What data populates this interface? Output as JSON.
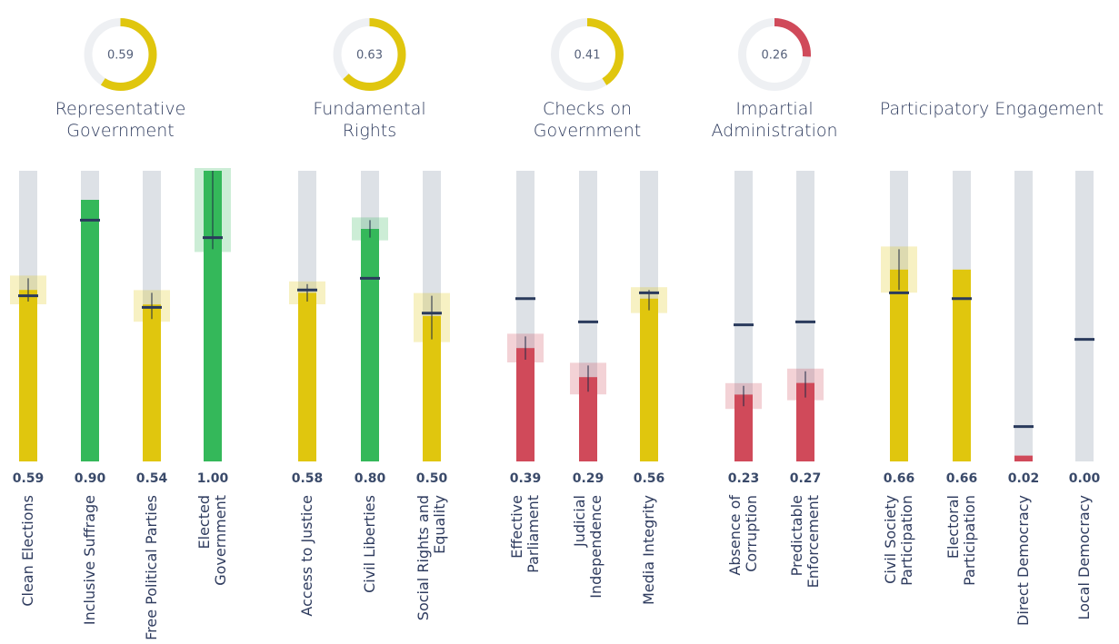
{
  "chart_data": {
    "type": "bar",
    "ylim": [
      0,
      1
    ],
    "groups": [
      {
        "title": "Representative Government",
        "score": 0.59,
        "score_color": "#e0c60e",
        "categories": [
          "Clean Elections",
          "Inclusive Suffrage",
          "Free Political Parties",
          "Elected Government"
        ],
        "values": [
          0.59,
          0.9,
          0.54,
          1.0
        ],
        "value_labels": [
          "0.59",
          "0.90",
          "0.54",
          "1.00"
        ],
        "colors": [
          "#e0c60e",
          "#34b85a",
          "#e0c60e",
          "#34b85a"
        ],
        "markers": [
          0.57,
          0.83,
          0.53,
          0.77
        ],
        "ci_low": [
          0.55,
          null,
          0.49,
          0.73
        ],
        "ci_high": [
          0.63,
          null,
          0.58,
          1.0
        ]
      },
      {
        "title": "Fundamental Rights",
        "score": 0.63,
        "score_color": "#e0c60e",
        "categories": [
          "Access to Justice",
          "Civil Liberties",
          "Social Rights and Equality"
        ],
        "values": [
          0.58,
          0.8,
          0.5
        ],
        "value_labels": [
          "0.58",
          "0.80",
          "0.50"
        ],
        "colors": [
          "#e0c60e",
          "#34b85a",
          "#e0c60e"
        ],
        "markers": [
          0.59,
          0.63,
          0.51
        ],
        "ci_low": [
          0.55,
          0.77,
          0.42
        ],
        "ci_high": [
          0.61,
          0.83,
          0.57
        ]
      },
      {
        "title": "Checks on Government",
        "score": 0.41,
        "score_color": "#e0c60e",
        "categories": [
          "Effective Parliament",
          "Judicial Independence",
          "Media Integrity"
        ],
        "values": [
          0.39,
          0.29,
          0.56
        ],
        "value_labels": [
          "0.39",
          "0.29",
          "0.56"
        ],
        "colors": [
          "#d04a5a",
          "#d04a5a",
          "#e0c60e"
        ],
        "markers": [
          0.56,
          0.48,
          0.58
        ],
        "ci_low": [
          0.35,
          0.24,
          0.52
        ],
        "ci_high": [
          0.43,
          0.33,
          0.59
        ]
      },
      {
        "title": "Impartial Administration",
        "score": 0.26,
        "score_color": "#d04a5a",
        "categories": [
          "Absence of Corruption",
          "Predictable Enforcement"
        ],
        "values": [
          0.23,
          0.27
        ],
        "value_labels": [
          "0.23",
          "0.27"
        ],
        "colors": [
          "#d04a5a",
          "#d04a5a"
        ],
        "markers": [
          0.47,
          0.48
        ],
        "ci_low": [
          0.19,
          0.22
        ],
        "ci_high": [
          0.26,
          0.31
        ]
      },
      {
        "title": "Participatory Engagement",
        "categories": [
          "Civil Society Participation",
          "Electoral Participation",
          "Direct Democracy",
          "Local Democracy"
        ],
        "values": [
          0.66,
          0.66,
          0.02,
          0.0
        ],
        "value_labels": [
          "0.66",
          "0.66",
          "0.02",
          "0.00"
        ],
        "colors": [
          "#e0c60e",
          "#e0c60e",
          "#d04a5a",
          "#d04a5a"
        ],
        "markers": [
          0.58,
          0.56,
          0.12,
          0.42
        ],
        "ci_low": [
          0.59,
          null,
          null,
          null
        ],
        "ci_high": [
          0.73,
          null,
          null,
          null
        ]
      }
    ]
  }
}
